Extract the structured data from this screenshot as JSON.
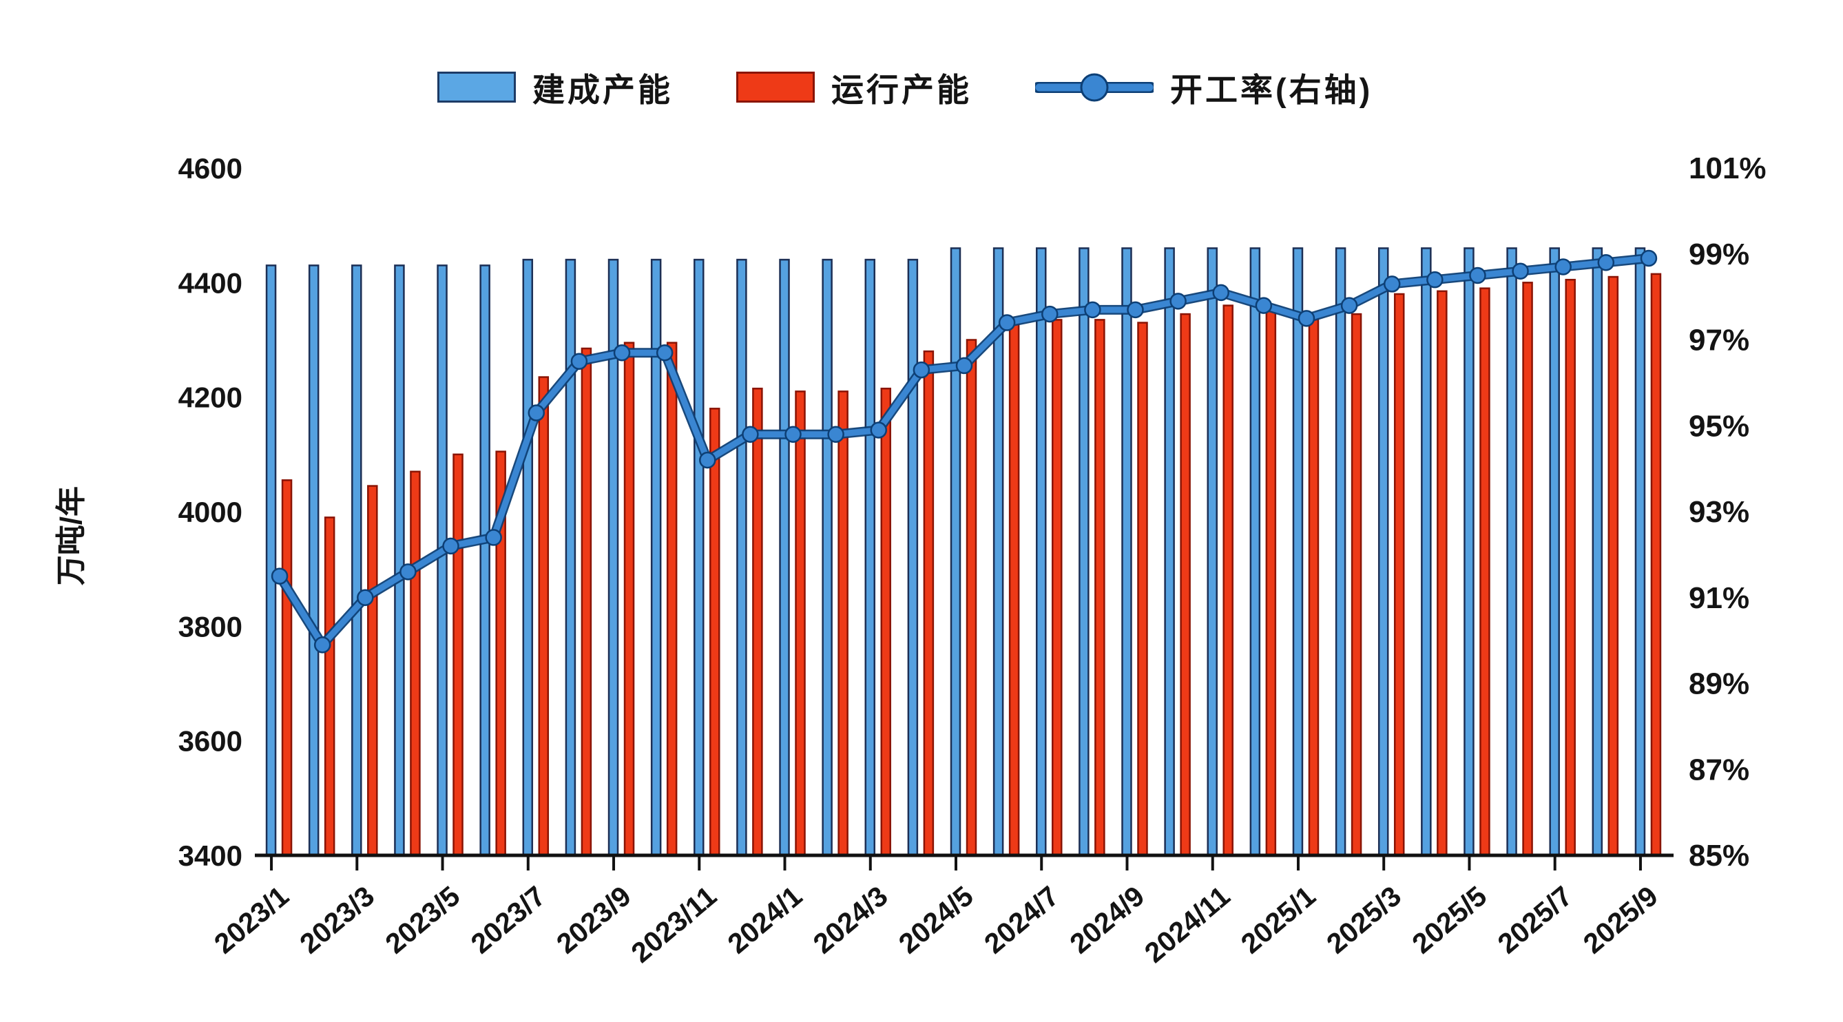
{
  "chart_data": {
    "type": "combo",
    "title": "",
    "categories": [
      "2023/1",
      "2023/2",
      "2023/3",
      "2023/4",
      "2023/5",
      "2023/6",
      "2023/7",
      "2023/8",
      "2023/9",
      "2023/10",
      "2023/11",
      "2023/12",
      "2024/1",
      "2024/2",
      "2024/3",
      "2024/4",
      "2024/5",
      "2024/6",
      "2024/7",
      "2024/8",
      "2024/9",
      "2024/10",
      "2024/11",
      "2024/12",
      "2025/1",
      "2025/2",
      "2025/3",
      "2025/4",
      "2025/5",
      "2025/6",
      "2025/7",
      "2025/8",
      "2025/9"
    ],
    "x_tick_labels": [
      "2023/1",
      "2023/3",
      "2023/5",
      "2023/7",
      "2023/9",
      "2023/11",
      "2024/1",
      "2024/3",
      "2024/5",
      "2024/7",
      "2024/9",
      "2024/11",
      "2025/1",
      "2025/3",
      "2025/5",
      "2025/7",
      "2025/9"
    ],
    "x_label_every": 2,
    "series": [
      {
        "name": "建成产能",
        "type": "bar",
        "axis": "left",
        "color": "#55a1e0",
        "edge_color": "#1c2f55",
        "values": [
          4430,
          4430,
          4430,
          4430,
          4430,
          4430,
          4440,
          4440,
          4440,
          4440,
          4440,
          4440,
          4440,
          4440,
          4440,
          4440,
          4460,
          4460,
          4460,
          4460,
          4460,
          4460,
          4460,
          4460,
          4460,
          4460,
          4460,
          4460,
          4460,
          4460,
          4460,
          4460,
          4460
        ]
      },
      {
        "name": "运行产能",
        "type": "bar",
        "axis": "left",
        "color": "#ee3a17",
        "edge_color": "#8a1404",
        "values": [
          4055,
          3990,
          4045,
          4070,
          4100,
          4105,
          4235,
          4285,
          4295,
          4295,
          4180,
          4215,
          4210,
          4210,
          4215,
          4280,
          4300,
          4335,
          4335,
          4335,
          4330,
          4345,
          4360,
          4360,
          4345,
          4345,
          4380,
          4385,
          4390,
          4400,
          4405,
          4410,
          4415
        ]
      },
      {
        "name": "开工率(右轴)",
        "type": "line",
        "axis": "right",
        "color": "#3a86d2",
        "edge_color": "#0d3f75",
        "unit": "%",
        "values": [
          91.5,
          89.9,
          91.0,
          91.6,
          92.2,
          92.4,
          95.3,
          96.5,
          96.7,
          96.7,
          94.2,
          94.8,
          94.8,
          94.8,
          94.9,
          96.3,
          96.4,
          97.4,
          97.6,
          97.7,
          97.7,
          97.9,
          98.1,
          97.8,
          97.5,
          97.8,
          98.3,
          98.4,
          98.5,
          98.6,
          98.7,
          98.8,
          98.9
        ]
      }
    ],
    "left_axis": {
      "title": "万吨/年",
      "min": 3400,
      "max": 4600,
      "step": 200,
      "tick_labels": [
        "4600",
        "4400",
        "4200",
        "4000",
        "3800",
        "3600",
        "3400"
      ]
    },
    "right_axis": {
      "title": "",
      "min": 85,
      "max": 101,
      "step": 2,
      "tick_labels": [
        "101%",
        "99%",
        "97%",
        "95%",
        "93%",
        "91%",
        "89%",
        "87%",
        "85%"
      ]
    },
    "grid": false,
    "legend_position": "top",
    "background": "#ffffff",
    "text_color": "#141414"
  }
}
